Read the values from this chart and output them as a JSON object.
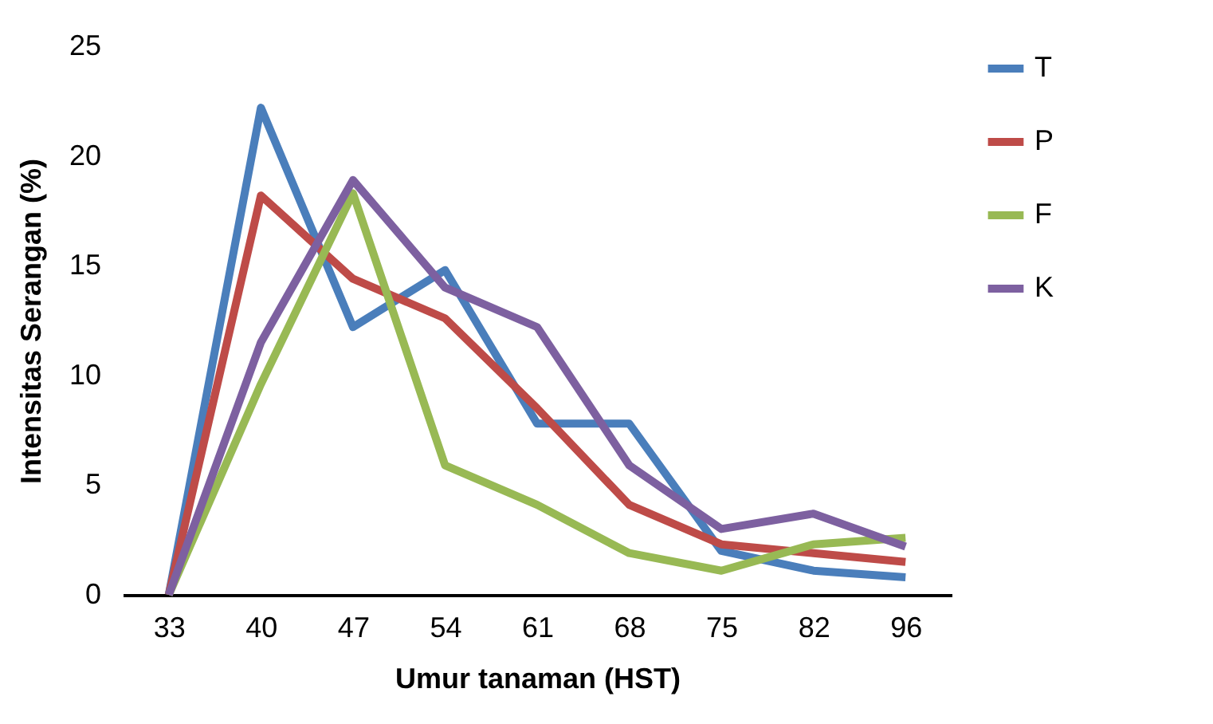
{
  "chart_data": {
    "type": "line",
    "xlabel": "Umur tanaman (HST)",
    "ylabel": "Intensitas Serangan (%)",
    "categories": [
      "33",
      "40",
      "47",
      "54",
      "61",
      "68",
      "75",
      "82",
      "96"
    ],
    "series": [
      {
        "name": "T",
        "color": "#4a7ebb",
        "values": [
          0,
          22.2,
          12.2,
          14.8,
          7.8,
          7.8,
          2.0,
          1.1,
          0.8
        ]
      },
      {
        "name": "P",
        "color": "#be4b48",
        "values": [
          0,
          18.2,
          14.4,
          12.6,
          8.5,
          4.1,
          2.3,
          1.9,
          1.5
        ]
      },
      {
        "name": "F",
        "color": "#98b954",
        "values": [
          0,
          9.6,
          18.3,
          5.9,
          4.1,
          1.9,
          1.1,
          2.3,
          2.6
        ]
      },
      {
        "name": "K",
        "color": "#7d60a0",
        "values": [
          0,
          11.5,
          18.9,
          14.0,
          12.2,
          5.9,
          3.0,
          3.7,
          2.2
        ]
      }
    ],
    "ylim": [
      0,
      25
    ],
    "yticks": [
      0,
      5,
      10,
      15,
      20,
      25
    ],
    "grid": false,
    "legend": "right",
    "marker": "none",
    "line_style": "solid"
  }
}
